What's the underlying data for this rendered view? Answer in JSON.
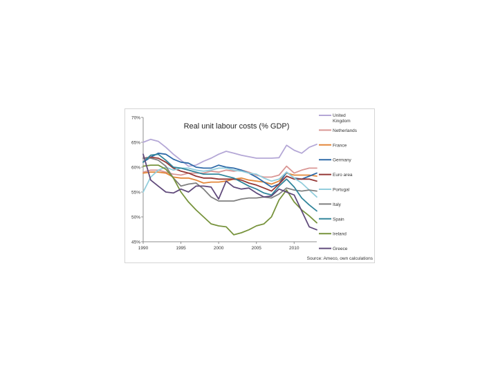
{
  "chart_data": {
    "type": "line",
    "title": "Real unit labour costs (% GDP)",
    "source_note": "Source: Ameco, own calculations",
    "xlabel": "",
    "ylabel": "",
    "xlim": [
      1990,
      2013
    ],
    "ylim": [
      45,
      70
    ],
    "x_ticks": [
      "1990",
      "1995",
      "2000",
      "2005",
      "2010"
    ],
    "y_ticks": [
      "45%",
      "50%",
      "55%",
      "60%",
      "65%",
      "70%"
    ],
    "grid": false,
    "legend_position": "right",
    "x": [
      1990,
      1991,
      1992,
      1993,
      1994,
      1995,
      1996,
      1997,
      1998,
      1999,
      2000,
      2001,
      2002,
      2003,
      2004,
      2005,
      2006,
      2007,
      2008,
      2009,
      2010,
      2011,
      2012,
      2013
    ],
    "series": [
      {
        "name": "United Kingdom",
        "color": "#b4a7d6",
        "values": [
          65.0,
          65.6,
          65.2,
          64.0,
          62.6,
          61.4,
          60.2,
          60.4,
          61.2,
          61.8,
          62.6,
          63.2,
          62.8,
          62.4,
          62.1,
          61.8,
          61.8,
          61.8,
          61.9,
          64.4,
          63.4,
          62.8,
          64.0,
          64.6
        ]
      },
      {
        "name": "Netherlands",
        "color": "#d99694",
        "values": [
          59.0,
          59.4,
          59.4,
          59.0,
          58.6,
          58.4,
          58.8,
          58.8,
          58.8,
          59.2,
          59.0,
          59.4,
          59.2,
          59.4,
          59.0,
          58.4,
          58.0,
          58.0,
          58.4,
          60.2,
          58.8,
          59.4,
          59.8,
          59.8
        ]
      },
      {
        "name": "France",
        "color": "#e3873a",
        "values": [
          58.8,
          59.0,
          59.0,
          58.8,
          58.0,
          57.8,
          57.8,
          57.4,
          56.8,
          57.0,
          57.0,
          57.2,
          57.6,
          57.8,
          57.4,
          57.2,
          57.0,
          56.6,
          57.2,
          58.8,
          58.4,
          58.4,
          58.4,
          58.2
        ]
      },
      {
        "name": "Germany",
        "color": "#2e6aa8",
        "values": [
          61.0,
          62.0,
          62.8,
          62.6,
          61.6,
          61.0,
          60.8,
          60.0,
          59.8,
          59.8,
          60.4,
          60.0,
          59.8,
          59.4,
          58.8,
          58.0,
          57.0,
          56.0,
          56.6,
          59.0,
          57.8,
          57.6,
          58.2,
          58.8
        ]
      },
      {
        "name": "Euro area",
        "color": "#943634",
        "values": [
          61.8,
          62.0,
          61.8,
          61.0,
          59.8,
          59.2,
          58.8,
          58.2,
          57.8,
          57.8,
          57.6,
          57.6,
          57.6,
          57.4,
          56.8,
          56.4,
          55.8,
          55.2,
          56.6,
          58.2,
          57.6,
          57.6,
          57.6,
          57.2
        ]
      },
      {
        "name": "Portugal",
        "color": "#92cddc",
        "values": [
          55.0,
          58.0,
          59.4,
          60.0,
          59.4,
          59.8,
          59.8,
          59.4,
          59.2,
          59.4,
          59.8,
          59.8,
          59.4,
          59.2,
          58.8,
          58.6,
          57.8,
          57.2,
          57.6,
          59.0,
          57.8,
          56.8,
          55.4,
          54.0
        ]
      },
      {
        "name": "Italy",
        "color": "#7f7f7f",
        "values": [
          61.8,
          61.8,
          61.4,
          60.2,
          57.8,
          56.2,
          56.6,
          56.8,
          55.6,
          54.0,
          53.2,
          53.2,
          53.2,
          53.6,
          53.8,
          53.8,
          54.0,
          53.8,
          54.6,
          55.8,
          55.4,
          55.2,
          55.4,
          55.2
        ]
      },
      {
        "name": "Spain",
        "color": "#31859b",
        "values": [
          61.0,
          62.4,
          62.6,
          61.4,
          60.0,
          59.8,
          59.4,
          59.0,
          58.6,
          58.6,
          58.6,
          58.2,
          57.8,
          57.0,
          56.2,
          55.6,
          54.8,
          54.4,
          56.2,
          57.6,
          56.0,
          53.8,
          52.4,
          51.2
        ]
      },
      {
        "name": "Ireland",
        "color": "#77933c",
        "values": [
          60.2,
          60.4,
          60.4,
          59.6,
          57.8,
          55.0,
          53.0,
          51.4,
          50.0,
          48.6,
          48.2,
          48.0,
          46.4,
          46.8,
          47.4,
          48.2,
          48.6,
          50.0,
          53.4,
          55.4,
          53.0,
          51.4,
          50.2,
          48.8
        ]
      },
      {
        "name": "Greece",
        "color": "#604a7b",
        "values": [
          62.6,
          57.4,
          56.2,
          55.0,
          54.8,
          55.6,
          55.0,
          56.2,
          56.2,
          56.0,
          53.6,
          57.2,
          56.0,
          55.6,
          55.8,
          54.8,
          54.0,
          54.2,
          55.6,
          55.0,
          54.4,
          51.2,
          48.0,
          47.4
        ]
      }
    ]
  }
}
